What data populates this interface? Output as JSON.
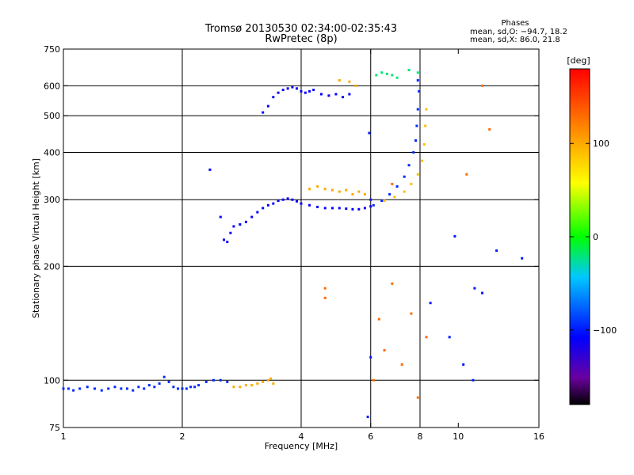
{
  "chart_data": {
    "type": "scatter",
    "title": "Tromsø 20130530 02:34:00-02:35:43",
    "subtitle": "RwPretec (8p)",
    "stats": {
      "header": "Phases",
      "o_line": "mean, sd,O: −94.7, 18.2",
      "x_line": "mean, sd,X:  86.0, 21.8"
    },
    "xlabel": "Frequency [MHz]",
    "ylabel": "Stationary phase Virtual Height [km]",
    "xscale": "log",
    "yscale": "log",
    "xlim": [
      1,
      16
    ],
    "ylim": [
      75,
      750
    ],
    "xticks": [
      1,
      2,
      4,
      6,
      8,
      10,
      16
    ],
    "xtick_labels": [
      "1",
      "2",
      "4",
      "6",
      "8",
      "10",
      "16"
    ],
    "xgrid": [
      2,
      4,
      6,
      8
    ],
    "yticks": [
      75,
      100,
      200,
      300,
      400,
      500,
      600,
      750
    ],
    "ytick_labels": [
      "75",
      "100",
      "200",
      "300",
      "400",
      "500",
      "600",
      "750"
    ],
    "ygrid": [
      100,
      200,
      300,
      400,
      500,
      600
    ],
    "grid": true,
    "colorbar": {
      "label": "[deg]",
      "range": [
        -180,
        180
      ],
      "ticks": [
        100,
        0,
        -100
      ],
      "tick_labels": [
        "100",
        "0",
        "−100"
      ]
    },
    "series": [
      {
        "key": "e_layer",
        "phase": -95,
        "points": [
          [
            1.0,
            95
          ],
          [
            1.03,
            95
          ],
          [
            1.06,
            94
          ],
          [
            1.1,
            95
          ],
          [
            1.15,
            96
          ],
          [
            1.2,
            95
          ],
          [
            1.25,
            94
          ],
          [
            1.3,
            95
          ],
          [
            1.35,
            96
          ],
          [
            1.4,
            95
          ],
          [
            1.45,
            95
          ],
          [
            1.5,
            94
          ],
          [
            1.55,
            96
          ],
          [
            1.6,
            95
          ],
          [
            1.65,
            97
          ],
          [
            1.7,
            96
          ],
          [
            1.75,
            98
          ],
          [
            1.8,
            102
          ],
          [
            1.85,
            99
          ],
          [
            1.9,
            96
          ],
          [
            1.95,
            95
          ],
          [
            2.0,
            95
          ],
          [
            2.05,
            95
          ],
          [
            2.1,
            96
          ],
          [
            2.15,
            96
          ],
          [
            2.2,
            97
          ],
          [
            2.3,
            99
          ],
          [
            2.4,
            100
          ],
          [
            2.5,
            100
          ],
          [
            2.6,
            99
          ]
        ]
      },
      {
        "key": "e_layer_hi",
        "phase": 100,
        "points": [
          [
            2.7,
            96
          ],
          [
            2.8,
            96
          ],
          [
            2.9,
            97
          ],
          [
            3.0,
            97
          ],
          [
            3.1,
            98
          ],
          [
            3.2,
            99
          ],
          [
            3.3,
            100
          ],
          [
            3.35,
            101
          ],
          [
            3.4,
            98
          ]
        ]
      },
      {
        "key": "f1_trace",
        "phase": -110,
        "points": [
          [
            2.35,
            360
          ],
          [
            2.5,
            270
          ],
          [
            2.55,
            235
          ],
          [
            2.6,
            232
          ],
          [
            2.65,
            245
          ],
          [
            2.7,
            255
          ],
          [
            2.8,
            258
          ],
          [
            2.9,
            262
          ],
          [
            3.0,
            270
          ],
          [
            3.1,
            278
          ],
          [
            3.2,
            285
          ],
          [
            3.3,
            290
          ],
          [
            3.4,
            293
          ],
          [
            3.5,
            298
          ],
          [
            3.6,
            300
          ],
          [
            3.7,
            302
          ],
          [
            3.8,
            300
          ],
          [
            3.9,
            297
          ],
          [
            4.0,
            293
          ],
          [
            4.2,
            290
          ],
          [
            4.4,
            287
          ],
          [
            4.6,
            285
          ],
          [
            4.8,
            285
          ],
          [
            5.0,
            285
          ],
          [
            5.2,
            284
          ],
          [
            5.4,
            283
          ],
          [
            5.6,
            283
          ],
          [
            5.8,
            285
          ],
          [
            6.0,
            288
          ]
        ]
      },
      {
        "key": "f2_o_trace",
        "phase": -95,
        "points": [
          [
            6.1,
            290
          ],
          [
            6.4,
            298
          ],
          [
            6.7,
            310
          ],
          [
            7.0,
            325
          ],
          [
            7.3,
            345
          ],
          [
            7.5,
            370
          ],
          [
            7.7,
            400
          ],
          [
            7.8,
            430
          ],
          [
            7.85,
            470
          ],
          [
            7.9,
            520
          ],
          [
            7.95,
            580
          ],
          [
            7.9,
            620
          ]
        ]
      },
      {
        "key": "f2_x_trace",
        "phase": 90,
        "points": [
          [
            6.5,
            298
          ],
          [
            6.9,
            305
          ],
          [
            7.3,
            315
          ],
          [
            7.6,
            330
          ],
          [
            7.9,
            350
          ],
          [
            8.1,
            380
          ],
          [
            8.2,
            420
          ],
          [
            8.25,
            470
          ],
          [
            8.3,
            520
          ]
        ]
      },
      {
        "key": "upper_trace",
        "phase": -110,
        "points": [
          [
            3.2,
            510
          ],
          [
            3.3,
            530
          ],
          [
            3.4,
            560
          ],
          [
            3.5,
            575
          ],
          [
            3.6,
            585
          ],
          [
            3.7,
            590
          ],
          [
            3.8,
            595
          ],
          [
            3.9,
            590
          ],
          [
            4.0,
            580
          ],
          [
            4.1,
            575
          ],
          [
            4.2,
            580
          ],
          [
            4.3,
            585
          ],
          [
            4.5,
            570
          ],
          [
            4.7,
            565
          ],
          [
            4.9,
            570
          ],
          [
            5.1,
            560
          ],
          [
            5.3,
            570
          ]
        ]
      },
      {
        "key": "upper_hi",
        "phase": 100,
        "points": [
          [
            5.0,
            620
          ],
          [
            5.3,
            615
          ],
          [
            5.5,
            600
          ]
        ]
      },
      {
        "key": "f_yellow_patch",
        "phase": 100,
        "points": [
          [
            4.2,
            320
          ],
          [
            4.4,
            325
          ],
          [
            4.6,
            320
          ],
          [
            4.8,
            318
          ],
          [
            5.0,
            315
          ],
          [
            5.2,
            318
          ],
          [
            5.4,
            310
          ],
          [
            5.6,
            315
          ],
          [
            5.8,
            310
          ]
        ]
      },
      {
        "key": "high_cluster",
        "phase": -20,
        "points": [
          [
            6.2,
            640
          ],
          [
            6.4,
            650
          ],
          [
            6.6,
            645
          ],
          [
            6.8,
            640
          ],
          [
            7.0,
            630
          ],
          [
            7.5,
            660
          ],
          [
            7.9,
            650
          ]
        ]
      },
      {
        "key": "scatter_pos",
        "phase": 130,
        "points": [
          [
            6.1,
            100
          ],
          [
            6.3,
            145
          ],
          [
            6.5,
            120
          ],
          [
            6.8,
            180
          ],
          [
            7.2,
            110
          ],
          [
            7.6,
            150
          ],
          [
            7.9,
            90
          ],
          [
            8.3,
            130
          ],
          [
            4.6,
            175
          ],
          [
            4.6,
            165
          ],
          [
            6.8,
            330
          ],
          [
            10.5,
            350
          ],
          [
            11.5,
            600
          ],
          [
            12.0,
            460
          ]
        ]
      },
      {
        "key": "scatter_neg",
        "phase": -100,
        "points": [
          [
            5.9,
            80
          ],
          [
            6.0,
            115
          ],
          [
            6.0,
            300
          ],
          [
            5.95,
            450
          ],
          [
            8.5,
            160
          ],
          [
            9.5,
            130
          ],
          [
            10.3,
            110
          ],
          [
            11.0,
            175
          ],
          [
            11.5,
            170
          ],
          [
            10.9,
            100
          ],
          [
            14.5,
            210
          ],
          [
            12.5,
            220
          ],
          [
            9.8,
            240
          ]
        ]
      }
    ]
  }
}
